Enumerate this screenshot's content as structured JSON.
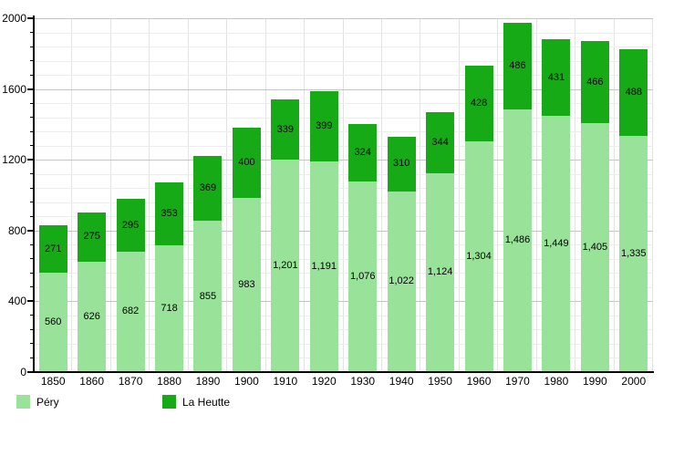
{
  "chart_data": {
    "type": "bar",
    "stacked": true,
    "title": "",
    "xlabel": "",
    "ylabel": "",
    "categories": [
      "1850",
      "1860",
      "1870",
      "1880",
      "1890",
      "1900",
      "1910",
      "1920",
      "1930",
      "1940",
      "1950",
      "1960",
      "1970",
      "1980",
      "1990",
      "2000"
    ],
    "series": [
      {
        "name": "Péry",
        "color": "#99e299",
        "values": [
          560,
          626,
          682,
          718,
          855,
          983,
          1201,
          1191,
          1076,
          1022,
          1124,
          1304,
          1486,
          1449,
          1405,
          1335
        ],
        "labels": [
          "560",
          "626",
          "682",
          "718",
          "855",
          "983",
          "1,201",
          "1,191",
          "1,076",
          "1,022",
          "1,124",
          "1,304",
          "1,486",
          "1,449",
          "1,405",
          "1,335"
        ]
      },
      {
        "name": "La Heutte",
        "color": "#16ab16",
        "values": [
          271,
          275,
          295,
          353,
          369,
          400,
          339,
          399,
          324,
          310,
          344,
          428,
          486,
          431,
          466,
          488
        ],
        "labels": [
          "271",
          "275",
          "295",
          "353",
          "369",
          "400",
          "339",
          "399",
          "324",
          "310",
          "344",
          "428",
          "486",
          "431",
          "466",
          "488"
        ]
      }
    ],
    "ylim": [
      0,
      2000
    ],
    "y_major_step": 400,
    "y_minor_step": 80,
    "y_tick_labels": [
      "0",
      "400",
      "800",
      "1200",
      "1600",
      "2000"
    ],
    "grid": "horizontal minor+major, vertical at decade boundaries",
    "legend_position": "bottom-left"
  },
  "colors": {
    "axis": "#000000",
    "grid_minor": "#ededed",
    "grid_major": "#c6c6c6",
    "grid_vertical": "#e3e3e3",
    "background": "#ffffff"
  }
}
